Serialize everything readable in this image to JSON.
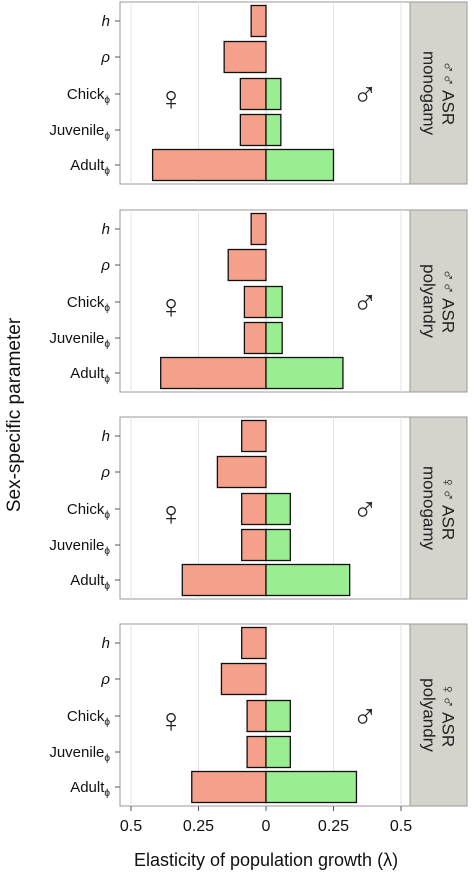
{
  "chart_data": {
    "type": "bar",
    "orientation": "horizontal",
    "layout": "faceted-rows",
    "ylabel": "Sex-specific parameter",
    "xlabel": "Elasticity of population growth (λ)",
    "xlim": [
      -0.5,
      0.5
    ],
    "x_ticks": [
      {
        "value": -0.5,
        "label": "0.5"
      },
      {
        "value": -0.25,
        "label": "0.25"
      },
      {
        "value": 0,
        "label": "0"
      },
      {
        "value": 0.25,
        "label": "0.25"
      },
      {
        "value": 0.5,
        "label": "0.5"
      }
    ],
    "categories": [
      {
        "base": "h",
        "sub": "",
        "italic": true
      },
      {
        "base": "ρ",
        "sub": "",
        "italic": true
      },
      {
        "base": "Chick",
        "sub": "ϕ",
        "italic": false
      },
      {
        "base": "Juvenile",
        "sub": "ϕ",
        "italic": false
      },
      {
        "base": "Adult",
        "sub": "ϕ",
        "italic": false
      }
    ],
    "grid": true,
    "colors": {
      "female": "#F4A08A",
      "male": "#98EE90",
      "strip": "#D4D4CC",
      "grid": "#E3E3E3",
      "panel_border": "#999999"
    },
    "female_symbol": "♀",
    "male_symbol": "♂",
    "panels": [
      {
        "strip_line1": "♂♂ ASR",
        "strip_line2": "monogamy",
        "female": [
          0.055,
          0.155,
          0.095,
          0.095,
          0.42
        ],
        "male": [
          0,
          0,
          0.055,
          0.055,
          0.25
        ]
      },
      {
        "strip_line1": "♂♂ ASR",
        "strip_line2": "polyandry",
        "female": [
          0.055,
          0.14,
          0.08,
          0.08,
          0.39
        ],
        "male": [
          0,
          0,
          0.06,
          0.06,
          0.285
        ]
      },
      {
        "strip_line1": "♀♂ ASR",
        "strip_line2": "monogamy",
        "female": [
          0.09,
          0.18,
          0.09,
          0.09,
          0.31
        ],
        "male": [
          0,
          0,
          0.09,
          0.09,
          0.31
        ]
      },
      {
        "strip_line1": "♀♂ ASR",
        "strip_line2": "polyandry",
        "female": [
          0.09,
          0.165,
          0.07,
          0.07,
          0.275
        ],
        "male": [
          0,
          0,
          0.09,
          0.09,
          0.335
        ]
      }
    ]
  }
}
